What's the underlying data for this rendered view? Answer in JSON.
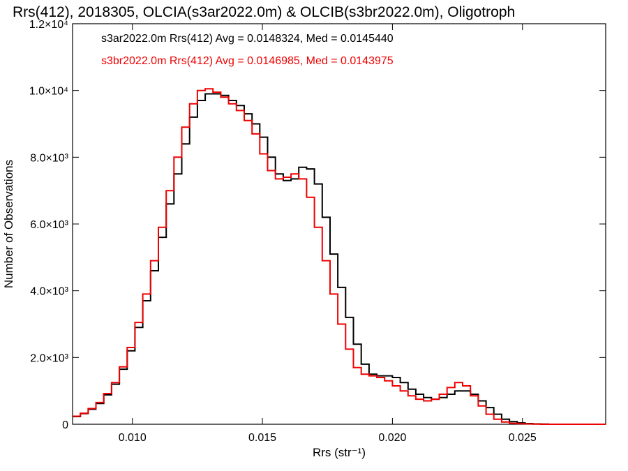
{
  "chart_data": {
    "type": "line",
    "title": "Rrs(412), 2018305, OLCIA(s3ar2022.0m) & OLCIB(s3br2022.0m), Oligotroph",
    "xlabel": "Rrs (str⁻¹)",
    "ylabel": "Number of Observations",
    "xlim": [
      0.0077,
      0.0282
    ],
    "ylim": [
      0,
      12000
    ],
    "x_ticks": [
      {
        "value": 0.01,
        "label": "0.010"
      },
      {
        "value": 0.015,
        "label": "0.015"
      },
      {
        "value": 0.02,
        "label": "0.020"
      },
      {
        "value": 0.025,
        "label": "0.025"
      }
    ],
    "y_ticks": [
      {
        "value": 0,
        "label": "0"
      },
      {
        "value": 2000,
        "label": "2.0×10³"
      },
      {
        "value": 4000,
        "label": "4.0×10³"
      },
      {
        "value": 6000,
        "label": "6.0×10³"
      },
      {
        "value": 8000,
        "label": "8.0×10³"
      },
      {
        "value": 10000,
        "label": "1.0×10⁴"
      },
      {
        "value": 12000,
        "label": "1.2×10⁴"
      }
    ],
    "grid": false,
    "legend_position": "top-left",
    "series": [
      {
        "name": "s3ar2022.0m Rrs(412) Avg = 0.0148324, Med = 0.0145440",
        "color": "#000000",
        "x": [
          0.0077,
          0.008,
          0.0083,
          0.0086,
          0.0089,
          0.0092,
          0.0095,
          0.0098,
          0.0101,
          0.0104,
          0.0107,
          0.011,
          0.0113,
          0.0116,
          0.0119,
          0.0122,
          0.0125,
          0.0128,
          0.0131,
          0.0134,
          0.0137,
          0.014,
          0.0143,
          0.0146,
          0.0149,
          0.0152,
          0.0155,
          0.0158,
          0.0161,
          0.0164,
          0.0167,
          0.017,
          0.0173,
          0.0176,
          0.0179,
          0.0182,
          0.0185,
          0.0188,
          0.0191,
          0.0194,
          0.0197,
          0.02,
          0.0203,
          0.0206,
          0.0209,
          0.0212,
          0.0215,
          0.0218,
          0.0221,
          0.0224,
          0.0227,
          0.023,
          0.0233,
          0.0236,
          0.0239,
          0.0242,
          0.0245,
          0.0248,
          0.0251,
          0.0254,
          0.0257,
          0.026,
          0.0263,
          0.0266,
          0.027,
          0.0275,
          0.0282
        ],
        "values": [
          230,
          320,
          450,
          620,
          880,
          1200,
          1650,
          2200,
          2900,
          3700,
          4600,
          5600,
          6600,
          7500,
          8400,
          9200,
          9700,
          9900,
          9900,
          9850,
          9700,
          9550,
          9300,
          9000,
          8600,
          8000,
          7500,
          7300,
          7350,
          7700,
          7650,
          7200,
          6200,
          5100,
          4100,
          3200,
          2400,
          1800,
          1500,
          1450,
          1450,
          1400,
          1250,
          1050,
          900,
          800,
          750,
          800,
          900,
          1000,
          1000,
          900,
          700,
          500,
          300,
          150,
          80,
          40,
          20,
          10,
          5,
          0,
          0,
          0,
          0,
          0,
          0
        ]
      },
      {
        "name": "s3br2022.0m Rrs(412) Avg = 0.0146985, Med = 0.0143975",
        "color": "#ee0000",
        "x": [
          0.0077,
          0.008,
          0.0083,
          0.0086,
          0.0089,
          0.0092,
          0.0095,
          0.0098,
          0.0101,
          0.0104,
          0.0107,
          0.011,
          0.0113,
          0.0116,
          0.0119,
          0.0122,
          0.0125,
          0.0128,
          0.0131,
          0.0134,
          0.0137,
          0.014,
          0.0143,
          0.0146,
          0.0149,
          0.0152,
          0.0155,
          0.0158,
          0.0161,
          0.0164,
          0.0167,
          0.017,
          0.0173,
          0.0176,
          0.0179,
          0.0182,
          0.0185,
          0.0188,
          0.0191,
          0.0194,
          0.0197,
          0.02,
          0.0203,
          0.0206,
          0.0209,
          0.0212,
          0.0215,
          0.0218,
          0.0221,
          0.0224,
          0.0227,
          0.023,
          0.0233,
          0.0236,
          0.0239,
          0.0242,
          0.0245,
          0.0248,
          0.0251,
          0.0254,
          0.0257,
          0.026,
          0.0263,
          0.0266,
          0.027,
          0.0275,
          0.0282
        ],
        "values": [
          240,
          330,
          470,
          650,
          920,
          1250,
          1720,
          2300,
          3050,
          3900,
          4900,
          5900,
          7000,
          8000,
          8900,
          9600,
          10000,
          10050,
          9950,
          9800,
          9600,
          9400,
          9100,
          8700,
          8100,
          7600,
          7350,
          7400,
          7500,
          7350,
          6800,
          5900,
          4900,
          3900,
          3000,
          2250,
          1700,
          1500,
          1450,
          1400,
          1300,
          1150,
          1000,
          850,
          750,
          700,
          750,
          900,
          1100,
          1250,
          1150,
          850,
          550,
          300,
          150,
          70,
          30,
          15,
          10,
          5,
          0,
          0,
          0,
          0,
          0,
          0,
          0
        ]
      }
    ]
  }
}
